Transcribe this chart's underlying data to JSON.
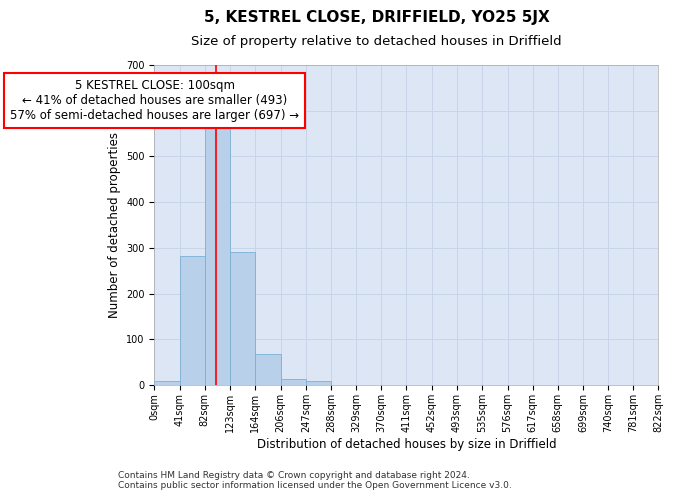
{
  "title": "5, KESTREL CLOSE, DRIFFIELD, YO25 5JX",
  "subtitle": "Size of property relative to detached houses in Driffield",
  "xlabel": "Distribution of detached houses by size in Driffield",
  "ylabel": "Number of detached properties",
  "bin_edges": [
    0,
    41,
    82,
    123,
    164,
    206,
    247,
    288,
    329,
    370,
    411,
    452,
    493,
    535,
    576,
    617,
    658,
    699,
    740,
    781,
    822
  ],
  "bar_heights": [
    8,
    283,
    562,
    291,
    68,
    14,
    8,
    0,
    0,
    0,
    0,
    0,
    0,
    0,
    0,
    0,
    0,
    0,
    0,
    0
  ],
  "bar_color": "#b8d0ea",
  "bar_edge_color": "#7aafd4",
  "grid_color": "#c8d4e8",
  "background_color": "#ffffff",
  "axes_background_color": "#dce6f5",
  "red_line_x": 100,
  "annotation_text": "5 KESTREL CLOSE: 100sqm\n← 41% of detached houses are smaller (493)\n57% of semi-detached houses are larger (697) →",
  "annotation_box_color": "white",
  "annotation_box_edge_color": "red",
  "annotation_fontsize": 8.5,
  "ylim": [
    0,
    700
  ],
  "yticks": [
    0,
    100,
    200,
    300,
    400,
    500,
    600,
    700
  ],
  "footer_line1": "Contains HM Land Registry data © Crown copyright and database right 2024.",
  "footer_line2": "Contains public sector information licensed under the Open Government Licence v3.0.",
  "title_fontsize": 11,
  "subtitle_fontsize": 9.5,
  "xlabel_fontsize": 8.5,
  "ylabel_fontsize": 8.5,
  "tick_label_fontsize": 7,
  "footer_fontsize": 6.5
}
